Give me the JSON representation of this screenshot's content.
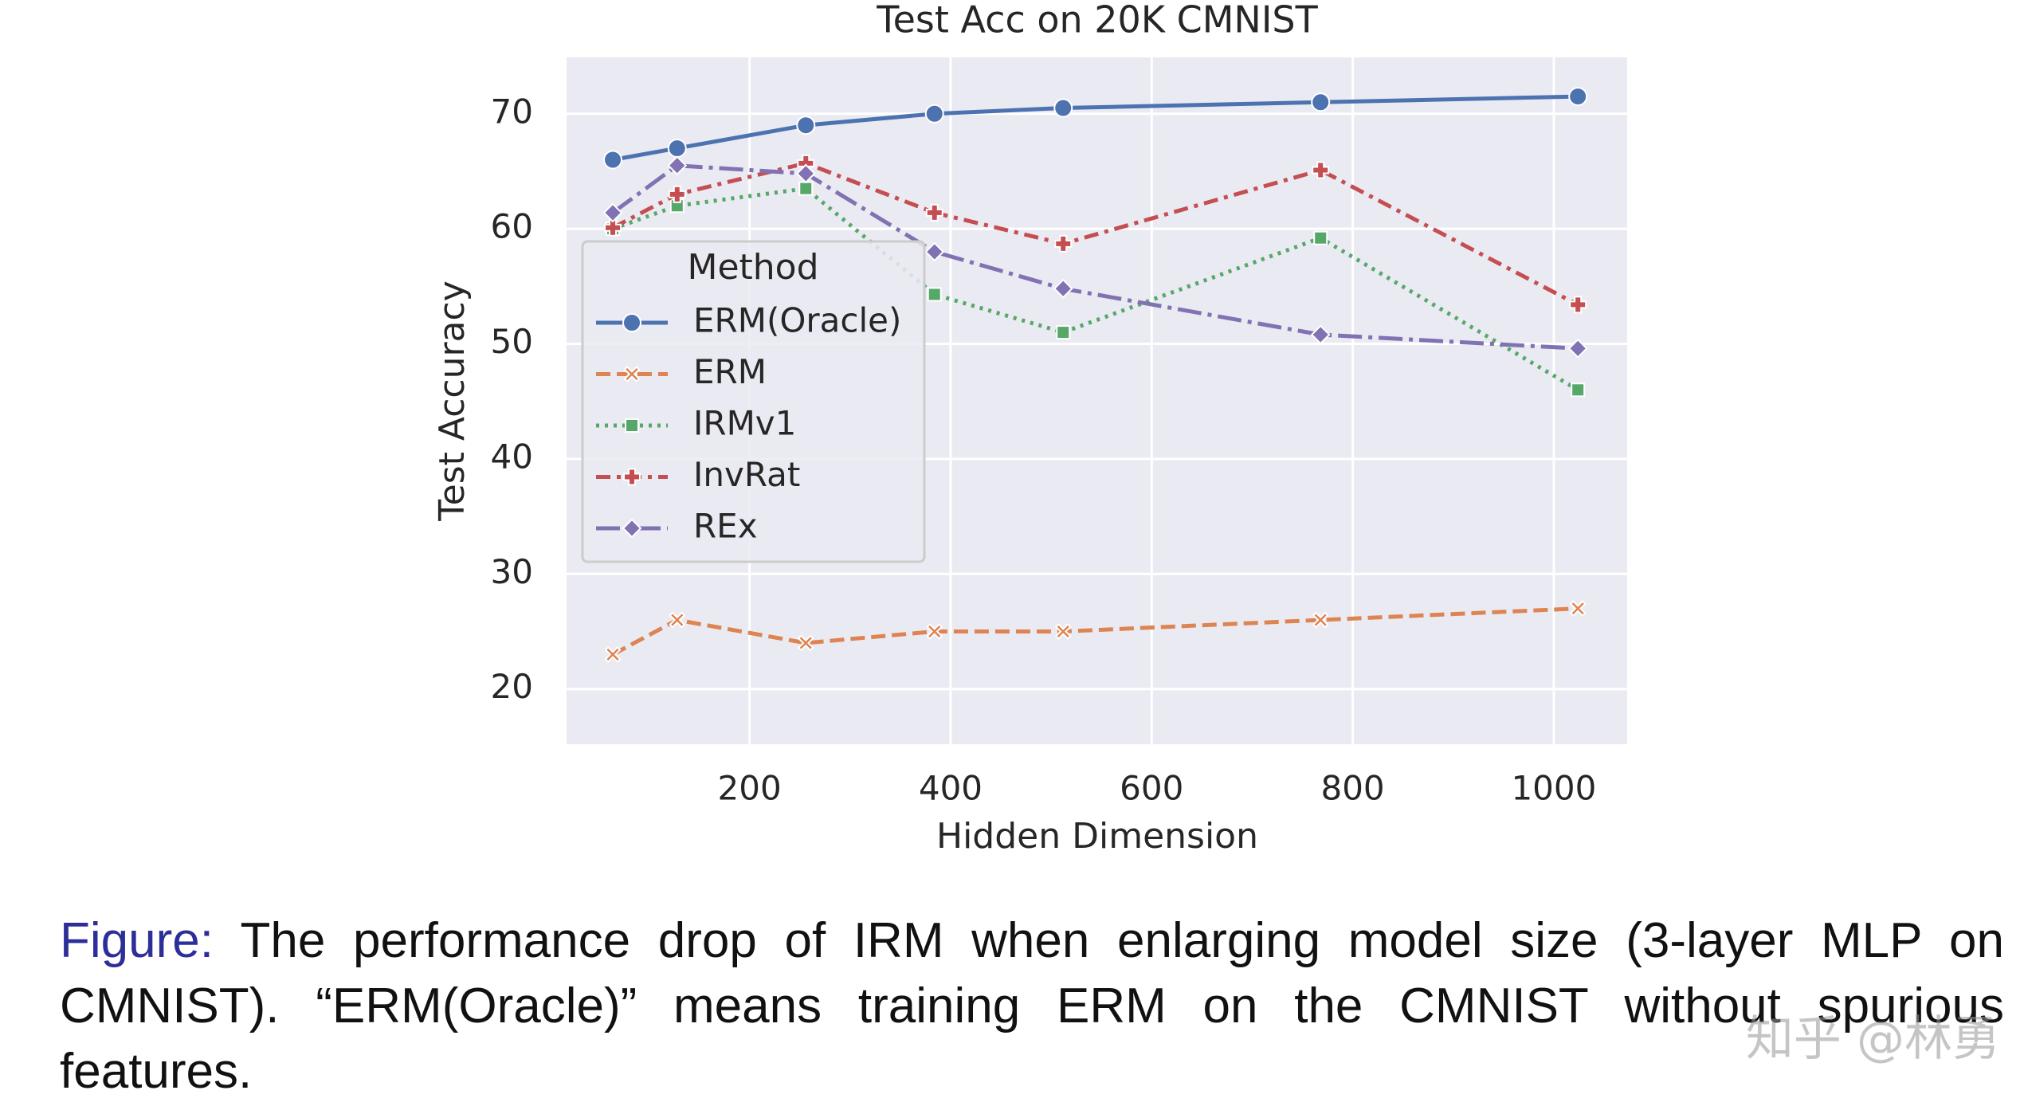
{
  "chart_data": {
    "type": "line",
    "title": "Test Acc on 20K CMNIST",
    "xlabel": "Hidden Dimension",
    "ylabel": "Test Accuracy",
    "x": [
      64,
      128,
      256,
      384,
      512,
      768,
      1024
    ],
    "xlim": [
      18,
      1073
    ],
    "xticks": [
      200,
      400,
      600,
      800,
      1000
    ],
    "ylim": [
      15.2,
      74.9
    ],
    "yticks": [
      20,
      30,
      40,
      50,
      60,
      70
    ],
    "grid": true,
    "legend_title": "Method",
    "legend": "upper left",
    "series": [
      {
        "name": "ERM(Oracle)",
        "color": "#4c72b0",
        "marker": "circle",
        "linestyle": "solid",
        "values": [
          66,
          67,
          69,
          70,
          70.5,
          71,
          71.5
        ]
      },
      {
        "name": "ERM",
        "color": "#dd8452",
        "marker": "x",
        "linestyle": "dashed",
        "values": [
          23,
          26,
          24,
          25,
          25,
          26,
          27
        ]
      },
      {
        "name": "IRMv1",
        "color": "#55a868",
        "marker": "square",
        "linestyle": "dotted",
        "values": [
          60,
          62,
          63.5,
          54.3,
          51,
          59.2,
          46
        ]
      },
      {
        "name": "InvRat",
        "color": "#c44e52",
        "marker": "plus",
        "linestyle": "dashdotshort",
        "values": [
          60.1,
          63,
          65.7,
          61.4,
          58.7,
          65.1,
          53.4
        ]
      },
      {
        "name": "REx",
        "color": "#8172b3",
        "marker": "diamond",
        "linestyle": "dashdot",
        "values": [
          61.4,
          65.5,
          64.8,
          58,
          54.8,
          50.8,
          49.6
        ]
      }
    ]
  },
  "caption": {
    "label": "Figure:",
    "text": "The performance drop of IRM when enlarging model size (3-layer MLP on CMNIST). “ERM(Oracle)” means training ERM on the CMNIST without spurious features."
  },
  "watermark": "知乎 @林勇"
}
